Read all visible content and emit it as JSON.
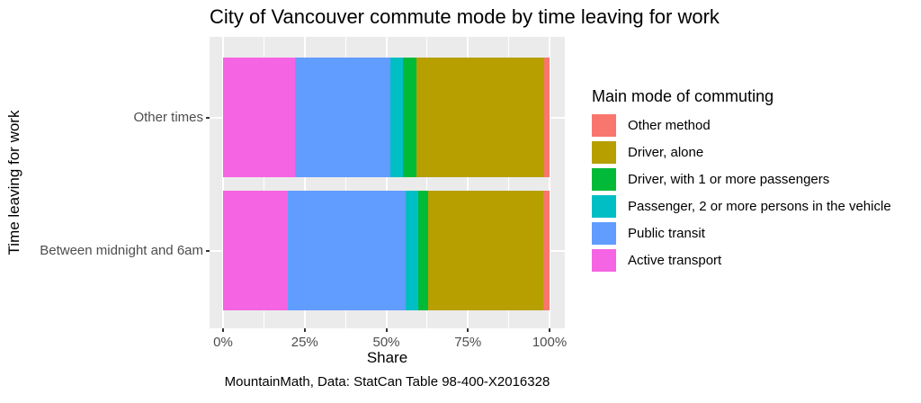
{
  "title": "City of Vancouver commute mode by time leaving for work",
  "caption": "MountainMath, Data: StatCan Table 98-400-X2016328",
  "axes": {
    "x_title": "Share",
    "y_title": "Time leaving for work",
    "x_tick_labels": [
      "0%",
      "25%",
      "50%",
      "75%",
      "100%"
    ]
  },
  "legend": {
    "title": "Main mode of commuting",
    "entries": [
      {
        "label": "Other method",
        "color": "#F8766D"
      },
      {
        "label": "Driver, alone",
        "color": "#B79F00"
      },
      {
        "label": "Driver, with 1 or more passengers",
        "color": "#00BA38"
      },
      {
        "label": "Passenger, 2 or more persons in the vehicle",
        "color": "#00BFC4"
      },
      {
        "label": "Public transit",
        "color": "#619CFF"
      },
      {
        "label": "Active transport",
        "color": "#F564E3"
      }
    ]
  },
  "colors": {
    "panel_background": "#EBEBEB",
    "gridline": "#FFFFFF",
    "tick_mark": "#333333",
    "tick_text": "#4D4D4D",
    "text": "#000000"
  },
  "chart_data": {
    "type": "bar",
    "orientation": "horizontal",
    "stacked": true,
    "title": "City of Vancouver commute mode by time leaving for work",
    "xlabel": "Share",
    "ylabel": "Time leaving for work",
    "xlim": [
      0,
      100
    ],
    "x_tick_labels": [
      "0%",
      "25%",
      "50%",
      "75%",
      "100%"
    ],
    "categories": [
      "Other times",
      "Between midnight and 6am"
    ],
    "series": [
      {
        "name": "Active transport",
        "color": "#F564E3",
        "values": [
          22.0,
          19.8
        ]
      },
      {
        "name": "Public transit",
        "color": "#619CFF",
        "values": [
          29.2,
          36.2
        ]
      },
      {
        "name": "Passenger, 2 or more persons in the vehicle",
        "color": "#00BFC4",
        "values": [
          3.9,
          3.9
        ]
      },
      {
        "name": "Driver, with 1 or more passengers",
        "color": "#00BA38",
        "values": [
          4.1,
          2.8
        ]
      },
      {
        "name": "Driver, alone",
        "color": "#B79F00",
        "values": [
          39.2,
          35.5
        ]
      },
      {
        "name": "Other method",
        "color": "#F8766D",
        "values": [
          1.6,
          1.8
        ]
      }
    ],
    "legend_title": "Main mode of commuting",
    "legend_position": "right",
    "grid": {
      "major_x_pct": [
        0,
        25,
        50,
        75,
        100
      ],
      "minor_x_pct": [
        12.5,
        37.5,
        62.5,
        87.5
      ]
    }
  }
}
